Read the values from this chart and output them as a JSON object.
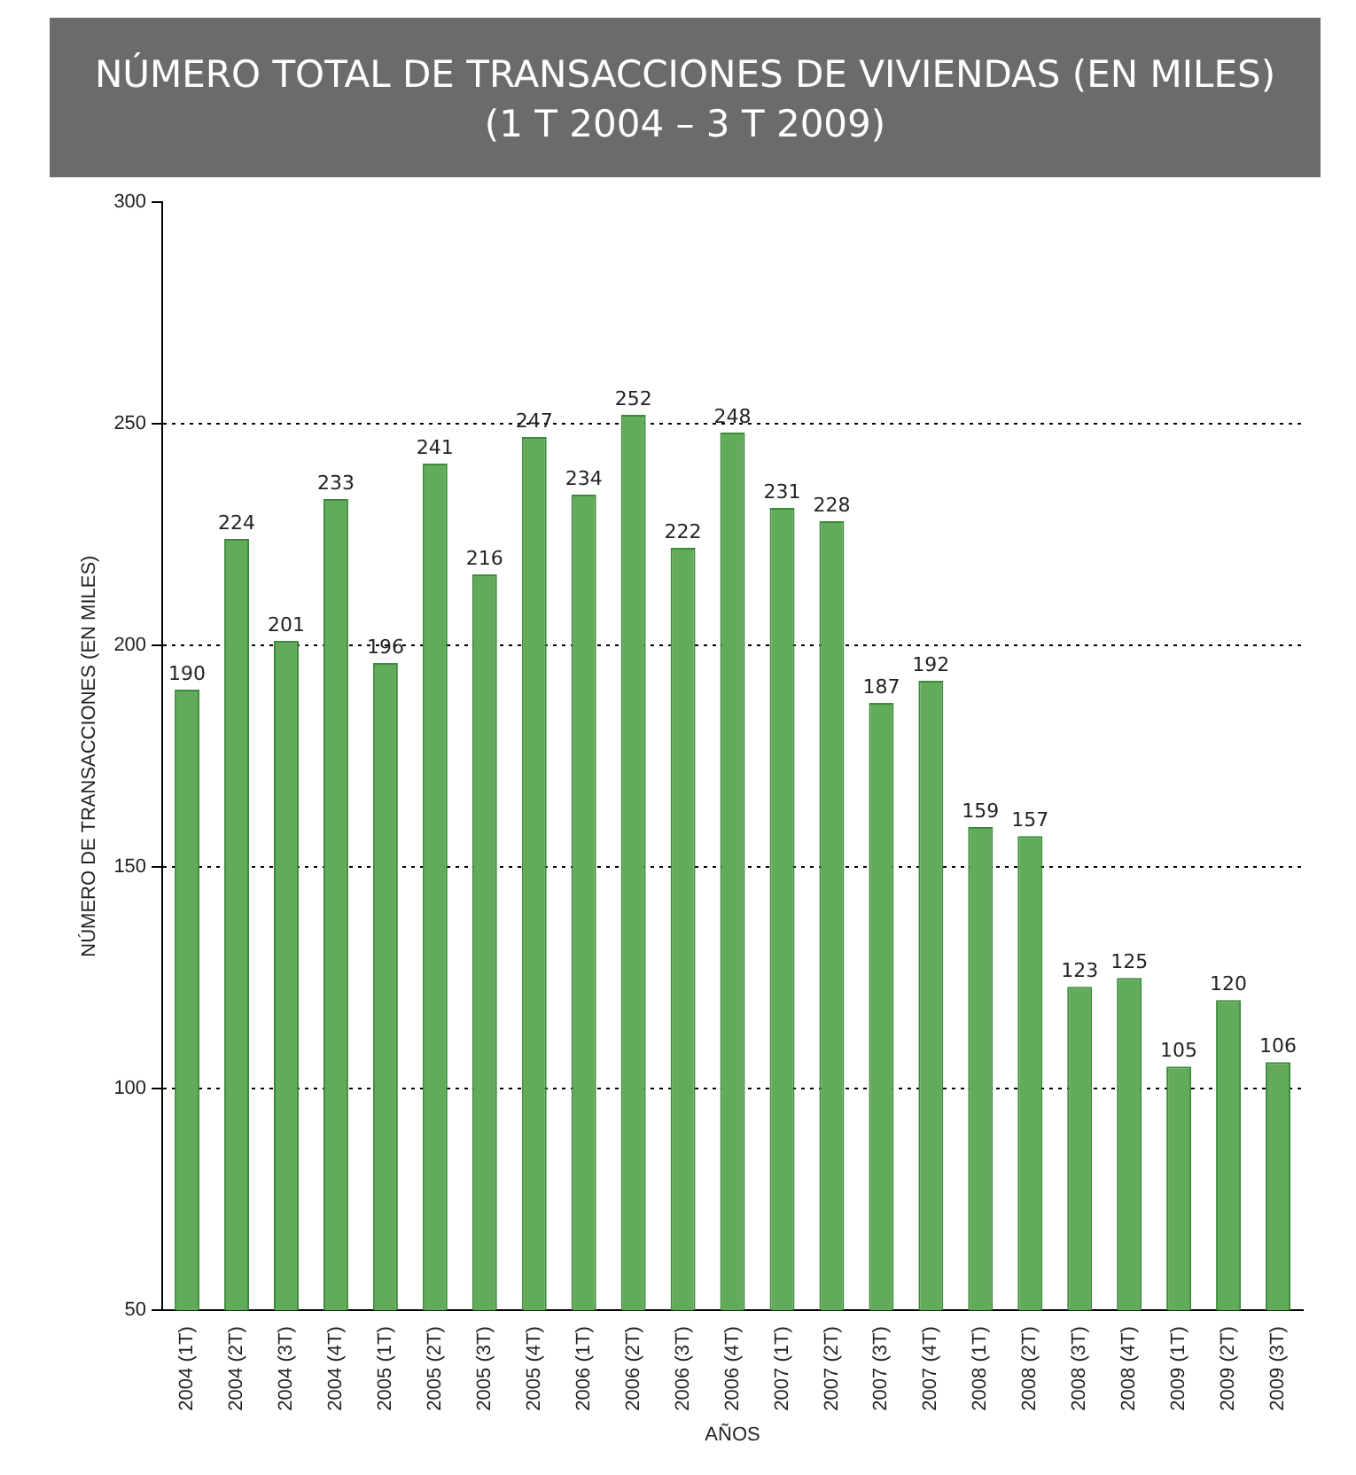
{
  "chart_data": {
    "type": "bar",
    "title": "NÚMERO TOTAL DE TRANSACCIONES DE VIVIENDAS (EN MILES)",
    "subtitle": "(1 T 2004 – 3 T 2009)",
    "xlabel": "AÑOS",
    "ylabel": "NÚMERO DE TRANSACCIONES (EN MILES)",
    "categories": [
      "2004 (1T)",
      "2004 (2T)",
      "2004 (3T)",
      "2004 (4T)",
      "2005 (1T)",
      "2005 (2T)",
      "2005 (3T)",
      "2005 (4T)",
      "2006 (1T)",
      "2006 (2T)",
      "2006 (3T)",
      "2006 (4T)",
      "2007 (1T)",
      "2007 (2T)",
      "2007 (3T)",
      "2007 (4T)",
      "2008 (1T)",
      "2008 (2T)",
      "2008 (3T)",
      "2008 (4T)",
      "2009 (1T)",
      "2009 (2T)",
      "2009 (3T)"
    ],
    "values": [
      190,
      224,
      201,
      233,
      196,
      241,
      216,
      247,
      234,
      252,
      222,
      248,
      231,
      228,
      187,
      192,
      159,
      157,
      123,
      125,
      105,
      120,
      106
    ],
    "color": "#62ab5b",
    "ylim": [
      50,
      300
    ],
    "yticks": [
      50,
      100,
      150,
      200,
      250,
      300
    ],
    "grid": "y",
    "data_labels": true
  }
}
